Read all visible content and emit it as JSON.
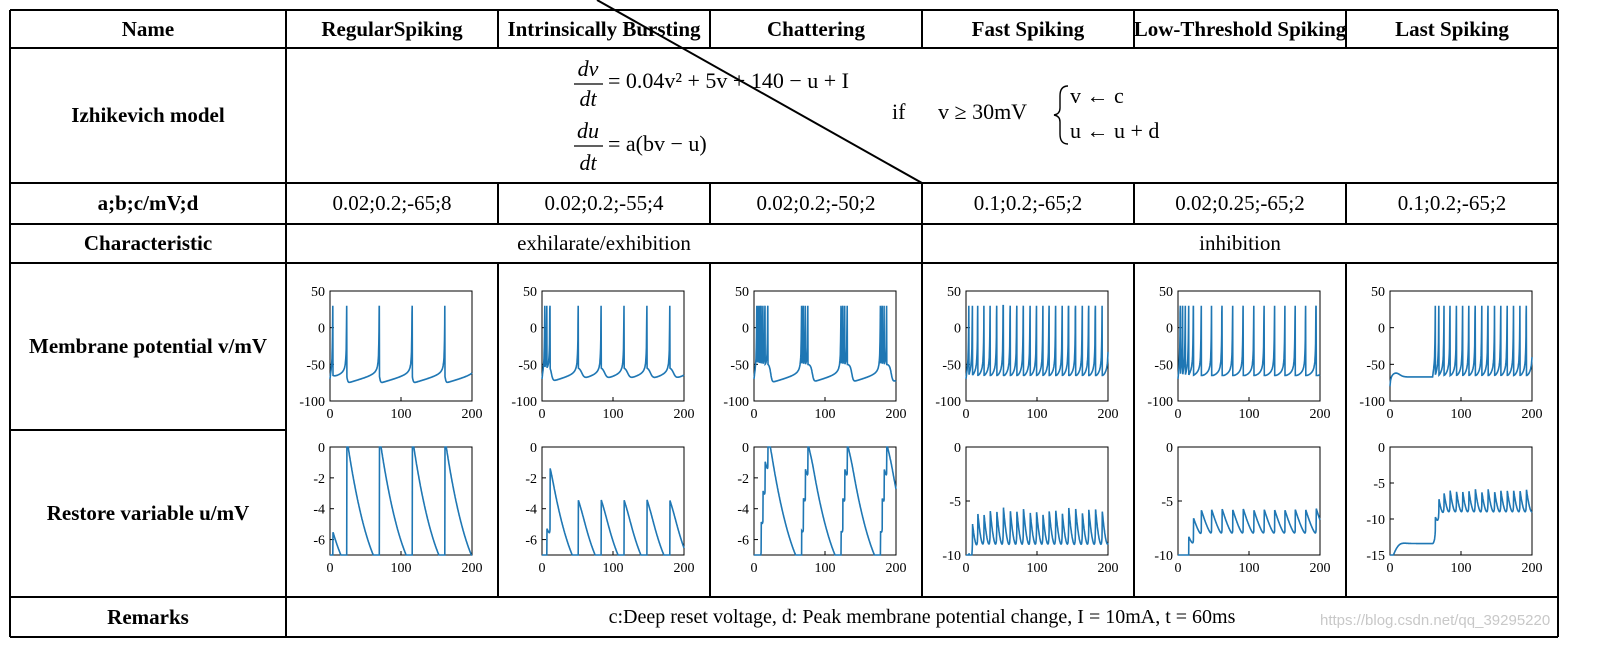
{
  "header": {
    "name": "Name",
    "types": [
      "RegularSpiking",
      "Intrinsically Bursting",
      "Chattering",
      "Fast Spiking",
      "Low-Threshold Spiking",
      "Last Spiking"
    ]
  },
  "model": {
    "label": "Izhikevich model",
    "eq1_lhs_num": "dv",
    "eq1_lhs_den": "dt",
    "eq1_rhs": "= 0.04v² + 5v + 140 − u + I",
    "eq2_lhs_num": "du",
    "eq2_lhs_den": "dt",
    "eq2_rhs": "= a(bv − u)",
    "if_text": "if",
    "condition": "v ≥ 30mV",
    "reset1": "v ← c",
    "reset2": "u ← u + d"
  },
  "params": {
    "label": "a;b;c/mV;d",
    "values": [
      "0.02;0.2;-65;8",
      "0.02;0.2;-55;4",
      "0.02;0.2;-50;2",
      "0.1;0.2;-65;2",
      "0.02;0.25;-65;2",
      "0.1;0.2;-65;2"
    ]
  },
  "characteristic": {
    "label": "Characteristic",
    "excite": "exhilarate/exhibition",
    "inhibit": "inhibition"
  },
  "rows": {
    "v_label": "Membrane potential v/mV",
    "u_label": "Restore variable u/mV"
  },
  "remarks": {
    "label": "Remarks",
    "text": "c:Deep reset voltage, d: Peak membrane potential change, I = 10mA, t = 60ms"
  },
  "watermark": "https://blog.csdn.net/qq_39295220",
  "colors": {
    "trace": "#1f77b4",
    "border": "#000000"
  },
  "chart_data": [
    {
      "type": "line",
      "panel": "RegularSpiking v",
      "x_range": [
        0,
        200
      ],
      "ylim": [
        -100,
        50
      ],
      "xticks": [
        0,
        100,
        200
      ],
      "yticks": [
        50,
        0,
        -50,
        -100
      ],
      "spike_times": [
        47,
        95,
        143,
        190
      ],
      "baseline": -75,
      "peak": 30
    },
    {
      "type": "line",
      "panel": "Intrinsically Bursting v",
      "x_range": [
        0,
        200
      ],
      "ylim": [
        -100,
        50
      ],
      "xticks": [
        0,
        100,
        200
      ],
      "yticks": [
        50,
        0,
        -50,
        -100
      ],
      "spike_times": [
        40,
        72,
        103,
        135,
        166
      ],
      "baseline": -65,
      "peak": 30
    },
    {
      "type": "line",
      "panel": "Chattering v",
      "x_range": [
        0,
        200
      ],
      "ylim": [
        -100,
        50
      ],
      "xticks": [
        0,
        100,
        200
      ],
      "yticks": [
        50,
        0,
        -50,
        -100
      ],
      "burst_times": [
        45,
        110,
        180
      ],
      "baseline": -70,
      "peak": 30
    },
    {
      "type": "line",
      "panel": "Fast Spiking v",
      "x_range": [
        0,
        200
      ],
      "ylim": [
        -100,
        50
      ],
      "xticks": [
        0,
        100,
        200
      ],
      "yticks": [
        50,
        0,
        -50,
        -100
      ],
      "spike_count": 28,
      "baseline": -60,
      "peak": 30
    },
    {
      "type": "line",
      "panel": "Low-Threshold Spiking v",
      "x_range": [
        0,
        200
      ],
      "ylim": [
        -100,
        50
      ],
      "xticks": [
        0,
        100,
        200
      ],
      "yticks": [
        50,
        0,
        -50,
        -100
      ],
      "spike_count": 20,
      "baseline": -60,
      "peak": 30
    },
    {
      "type": "line",
      "panel": "Last Spiking v",
      "x_range": [
        0,
        200
      ],
      "ylim": [
        -100,
        50
      ],
      "xticks": [
        0,
        100,
        200
      ],
      "yticks": [
        50,
        0,
        -50,
        -100
      ],
      "onset": 60,
      "spike_count": 16,
      "baseline": -72,
      "peak": 30
    },
    {
      "type": "line",
      "panel": "RegularSpiking u",
      "x_range": [
        0,
        200
      ],
      "ylim": [
        -7,
        0
      ],
      "xticks": [
        0,
        100,
        200
      ],
      "yticks": [
        0,
        -2,
        -4,
        -6
      ],
      "spike_times": [
        47,
        95,
        143,
        190
      ]
    },
    {
      "type": "line",
      "panel": "Intrinsically Bursting u",
      "x_range": [
        0,
        200
      ],
      "ylim": [
        -7,
        0
      ],
      "xticks": [
        0,
        100,
        200
      ],
      "yticks": [
        0,
        -2,
        -4,
        -6
      ],
      "spike_times": [
        40,
        72,
        103,
        135,
        166
      ]
    },
    {
      "type": "line",
      "panel": "Chattering u",
      "x_range": [
        0,
        200
      ],
      "ylim": [
        -7,
        0
      ],
      "xticks": [
        0,
        100,
        200
      ],
      "yticks": [
        0,
        -2,
        -4,
        -6
      ],
      "burst_times": [
        45,
        110,
        180
      ]
    },
    {
      "type": "line",
      "panel": "Fast Spiking u",
      "x_range": [
        0,
        200
      ],
      "ylim": [
        -10,
        0
      ],
      "xticks": [
        0,
        100,
        200
      ],
      "yticks": [
        0,
        -5,
        -10
      ]
    },
    {
      "type": "line",
      "panel": "Low-Threshold Spiking u",
      "x_range": [
        0,
        200
      ],
      "ylim": [
        -10,
        0
      ],
      "xticks": [
        0,
        100,
        200
      ],
      "yticks": [
        0,
        -5,
        -10
      ]
    },
    {
      "type": "line",
      "panel": "Last Spiking u",
      "x_range": [
        0,
        200
      ],
      "ylim": [
        -15,
        0
      ],
      "xticks": [
        0,
        100,
        200
      ],
      "yticks": [
        0,
        -5,
        -10,
        -15
      ]
    }
  ]
}
